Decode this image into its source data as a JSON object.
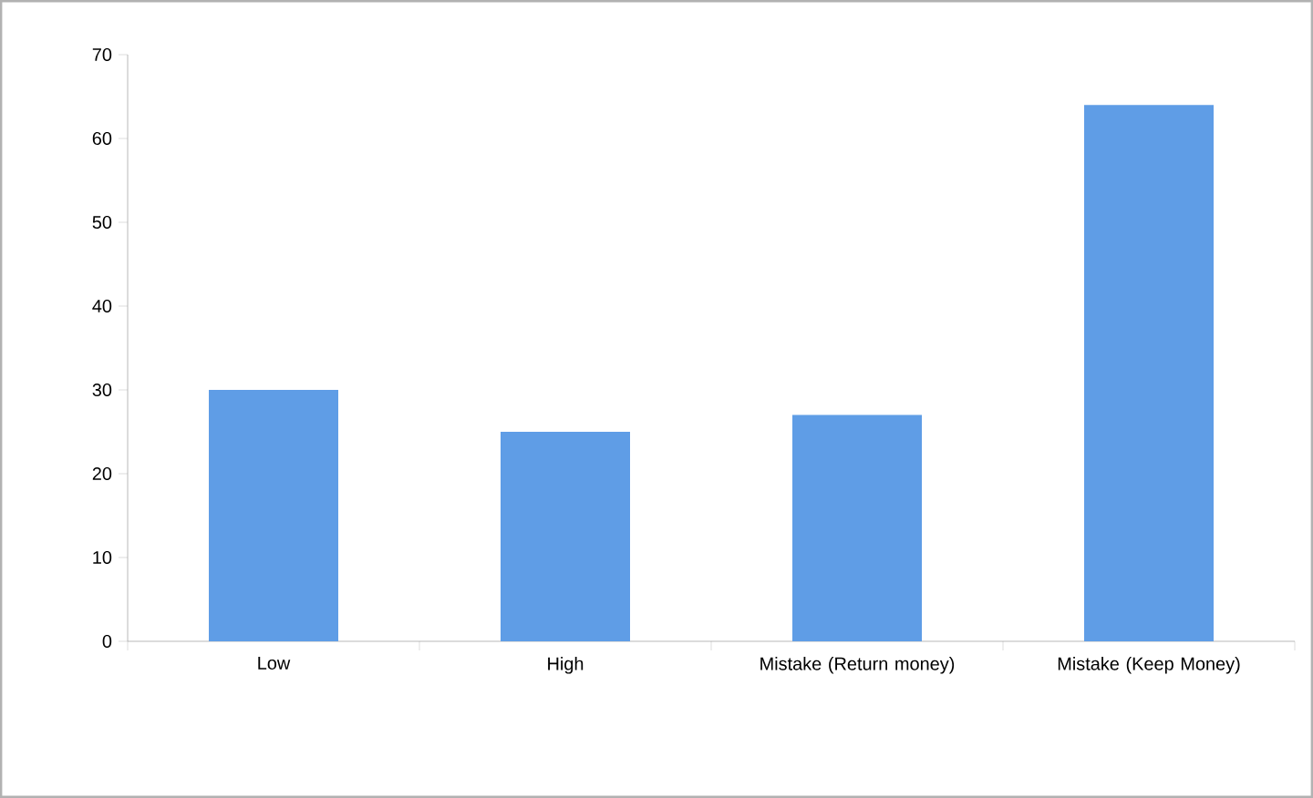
{
  "chart_data": {
    "type": "bar",
    "categories": [
      "Low",
      "High",
      "Mistake (Return money)",
      "Mistake (Keep Money)"
    ],
    "values": [
      30,
      25,
      27,
      64
    ],
    "color": "#5f9de6",
    "ylim": [
      0,
      70
    ],
    "yticks": [
      0,
      10,
      20,
      30,
      40,
      50,
      60,
      70
    ]
  }
}
